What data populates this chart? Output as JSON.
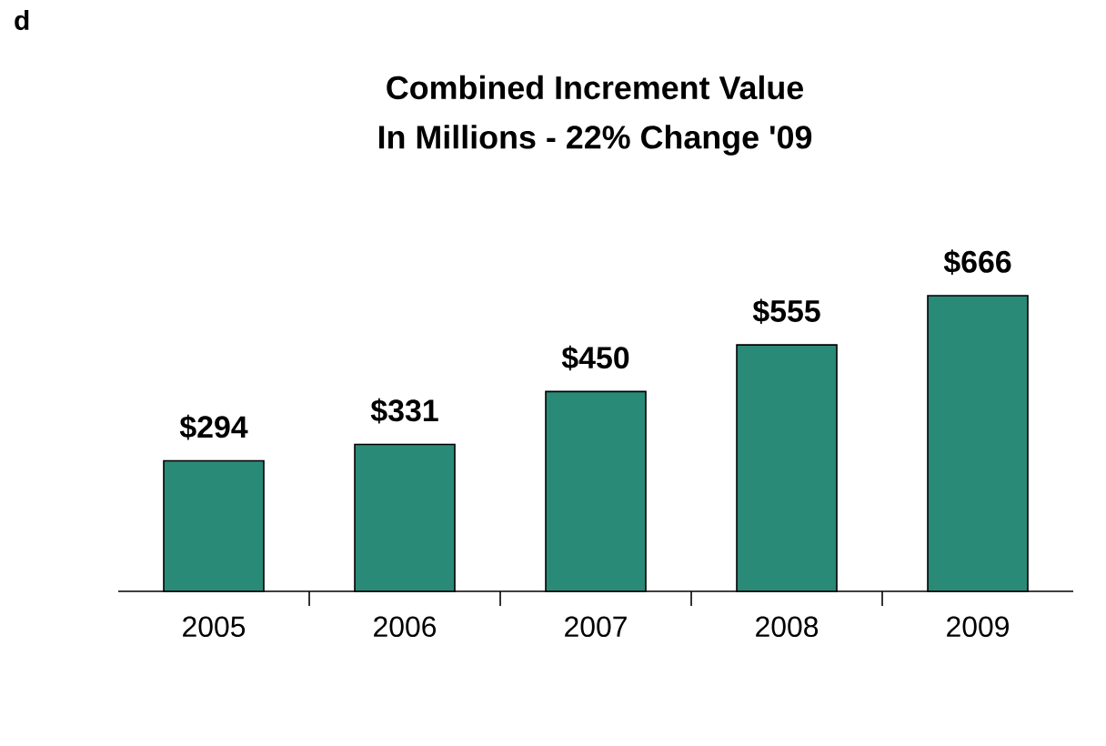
{
  "chart_data": {
    "type": "bar",
    "title": "Combined Increment Value",
    "subtitle": "In Millions - 22% Change '09",
    "categories": [
      "2005",
      "2006",
      "2007",
      "2008",
      "2009"
    ],
    "values": [
      294,
      331,
      450,
      555,
      666
    ],
    "value_labels": [
      "$294",
      "$331",
      "$450",
      "$555",
      "$666"
    ],
    "color": "#2a8a78",
    "annotations": [
      "d"
    ]
  }
}
